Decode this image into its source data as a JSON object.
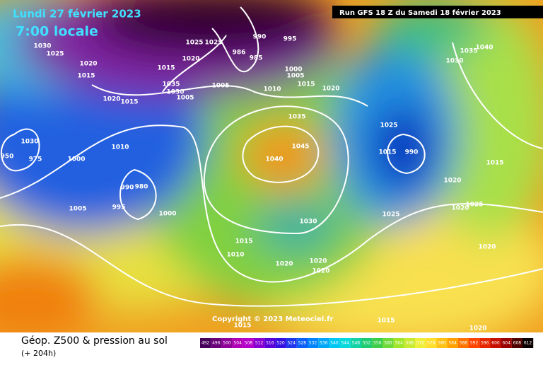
{
  "header": {
    "date": "Lundi 27 février 2023",
    "time": "7:00 locale",
    "run": "Run GFS 18 Z du Samedi 18 février 2023"
  },
  "copyright": "Copyright © 2023 Meteociel.fr",
  "footer": {
    "title": "Géop. Z500 & pression au sol",
    "lead": "(+ 204h)"
  },
  "scale": [
    492,
    496,
    500,
    504,
    508,
    512,
    516,
    520,
    524,
    528,
    532,
    536,
    540,
    544,
    548,
    552,
    556,
    560,
    564,
    568,
    572,
    576,
    580,
    584,
    588,
    592,
    596,
    600,
    604,
    608,
    612
  ],
  "isobars": [
    1030,
    1025,
    1020,
    1015,
    1015,
    1025,
    1025,
    1020,
    990,
    995,
    985,
    986,
    1000,
    1005,
    1010,
    1005,
    1035,
    1030,
    1005,
    1020,
    1015,
    1015,
    1020,
    1035,
    1045,
    1040,
    1010,
    1000,
    975,
    950,
    1030,
    990,
    980,
    995,
    1005,
    1000,
    1015,
    1010,
    1020,
    1020,
    1020,
    1030,
    1025,
    1015,
    990,
    1025,
    1020,
    1020,
    1025,
    1015,
    1020,
    1030,
    1035,
    1040,
    1015,
    1015,
    1020
  ]
}
